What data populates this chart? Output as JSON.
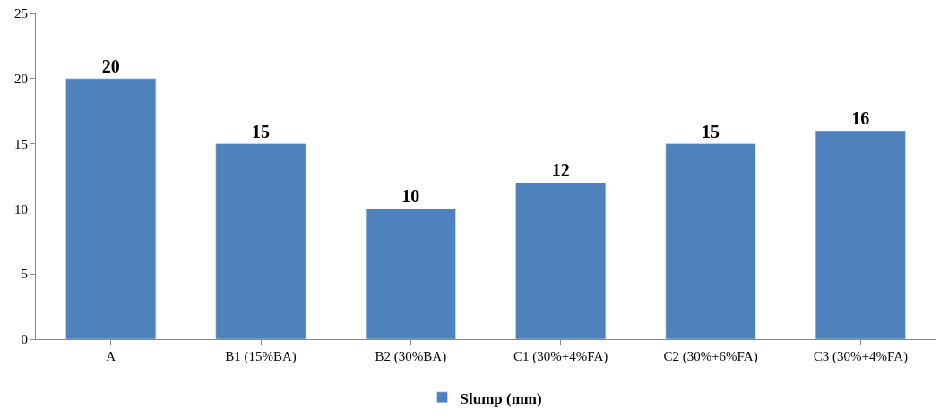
{
  "chart_data": {
    "type": "bar",
    "categories": [
      "A",
      "B1 (15%BA)",
      "B2 (30%BA)",
      "C1 (30%+4%FA)",
      "C2 (30%+6%FA)",
      "C3 (30%+4%FA)"
    ],
    "series": [
      {
        "name": "Slump (mm)",
        "color": "#4f81bd",
        "values": [
          20,
          15,
          10,
          12,
          15,
          16
        ]
      }
    ],
    "ylim": [
      0,
      25
    ],
    "yticks": [
      0,
      5,
      10,
      15,
      20,
      25
    ],
    "legend": "bottom",
    "data_labels": true
  }
}
